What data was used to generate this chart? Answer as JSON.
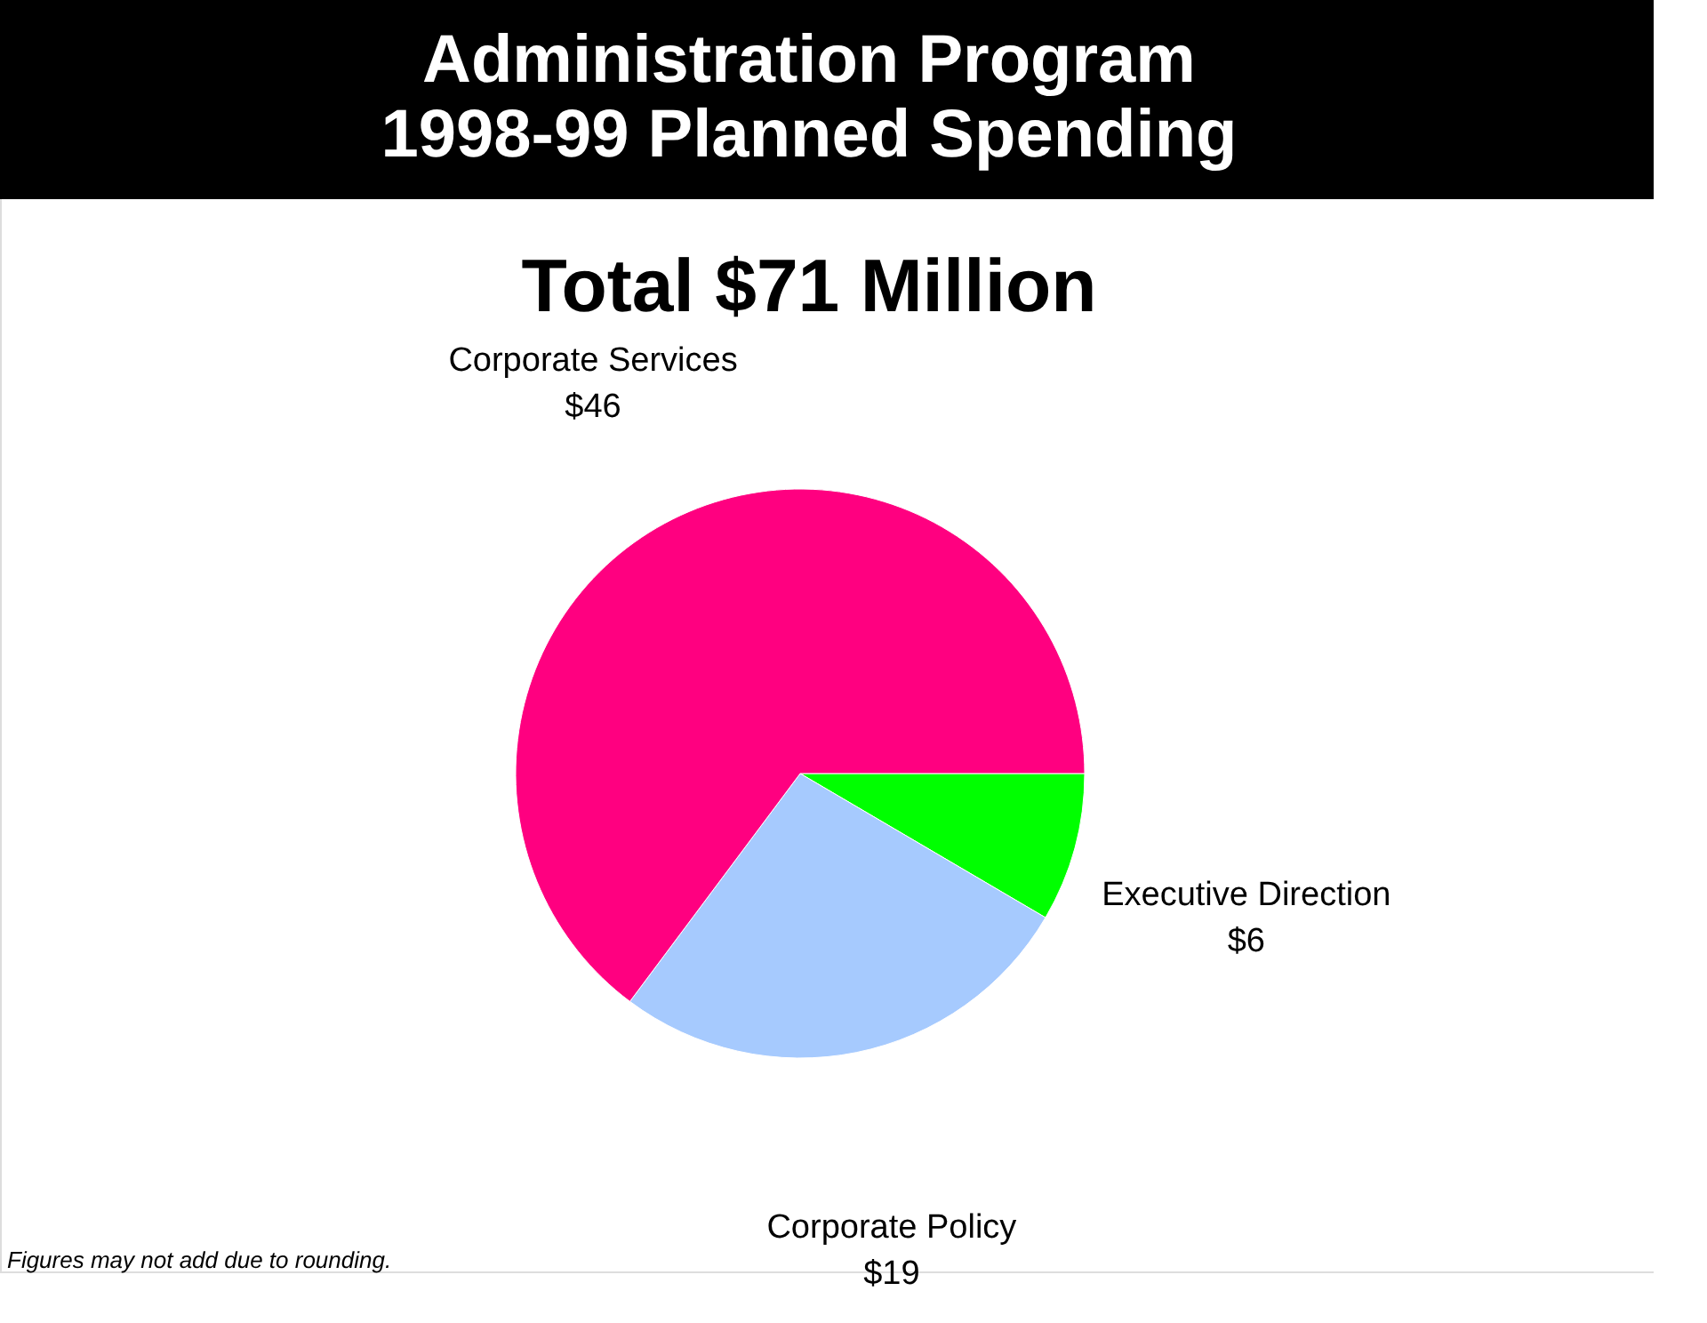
{
  "chart_data": {
    "type": "pie",
    "title": "Administration Program\n1998-99 Planned Spending",
    "subtitle": "Total $71 Million",
    "categories": [
      "Executive Direction",
      "Corporate Policy",
      "Corporate Services"
    ],
    "values": [
      6,
      19,
      46
    ],
    "value_labels": [
      "$6",
      "$19",
      "$46"
    ],
    "colors": [
      "#00ff00",
      "#a6cafe",
      "#ff0080"
    ],
    "legend": false,
    "annotations": [
      "Figures may not add due to rounding."
    ]
  }
}
